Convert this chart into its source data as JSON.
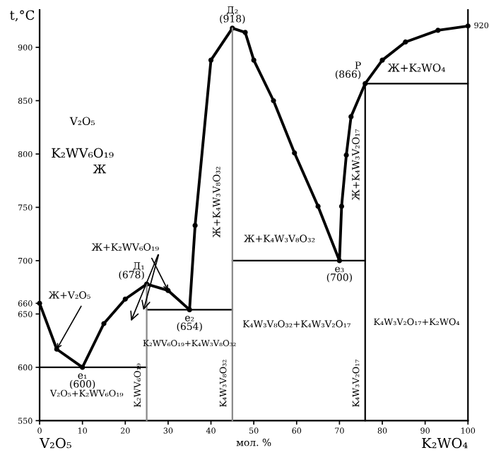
{
  "chart_data": {
    "type": "line",
    "xlabel": "мол. %",
    "ylabel": "t,°C",
    "xlim": [
      0,
      100
    ],
    "ylim": [
      550,
      935
    ],
    "xticks": [
      0,
      10,
      20,
      30,
      40,
      50,
      60,
      70,
      80,
      90,
      100
    ],
    "yticks": [
      550,
      600,
      650,
      660,
      700,
      750,
      800,
      850,
      900
    ],
    "grid": false,
    "marker": "circle",
    "line_style": "solid",
    "series": [
      {
        "color": "#000000",
        "x": [
          0,
          4,
          10,
          15,
          20,
          25,
          30,
          35,
          36.3,
          40,
          45,
          48,
          50,
          54.6,
          59.5,
          65,
          70,
          70.5,
          71.6,
          72.7,
          76,
          80,
          85.4,
          93,
          100
        ],
        "values": [
          660,
          617,
          600,
          641,
          664,
          678,
          672,
          654,
          733,
          888,
          918,
          914,
          888,
          850,
          801,
          751,
          700,
          751,
          799,
          835,
          866,
          888,
          905,
          916,
          920
        ]
      },
      {
        "color": "#000000",
        "marker": "none",
        "x": [
          0,
          25
        ],
        "values": [
          600,
          600
        ]
      },
      {
        "color": "#000000",
        "marker": "none",
        "x": [
          25,
          45
        ],
        "values": [
          654,
          654
        ]
      },
      {
        "color": "#000000",
        "marker": "none",
        "x": [
          45,
          76
        ],
        "values": [
          700,
          700
        ]
      },
      {
        "color": "#000000",
        "marker": "none",
        "x": [
          76,
          100
        ],
        "values": [
          866,
          866
        ]
      },
      {
        "color": "#888888",
        "marker": "none",
        "x": [
          25,
          25
        ],
        "values": [
          550,
          678
        ]
      },
      {
        "color": "#888888",
        "marker": "none",
        "x": [
          45,
          45
        ],
        "values": [
          550,
          918
        ]
      },
      {
        "color": "#000000",
        "marker": "none",
        "x": [
          76,
          76
        ],
        "values": [
          550,
          866
        ]
      }
    ],
    "annotations": [
      {
        "text": "Д₁\n(678)",
        "x": 25,
        "y": 678
      },
      {
        "text": "Д₂\n(918)",
        "x": 45,
        "y": 918
      },
      {
        "text": "e₁\n(600)",
        "x": 10,
        "y": 600
      },
      {
        "text": "e₂\n(654)",
        "x": 35,
        "y": 654
      },
      {
        "text": "e₃\n(700)",
        "x": 70,
        "y": 700
      },
      {
        "text": "P\n(866)",
        "x": 76,
        "y": 866
      },
      {
        "text": "920",
        "x": 100,
        "y": 920
      },
      {
        "text": "Ж+V₂O₅",
        "x": 4,
        "y": 617
      },
      {
        "text": "Ж+K₂WV₆O₁₉",
        "x": 30,
        "y": 672
      },
      "Ж+K₄W₃V₈O₃₂",
      "Ж+K₄W₃V₈O₃₂",
      "Ж+K₄W₃V₂O₁₇",
      "Ж+K₂WO₄",
      "V₂O₅+K₂WV₆O₁₉",
      "K₂WV₆O₁₉",
      "K₂WV₆O₁₉+K₄W₃V₈O₃₂",
      "K₄W₃V₈O₃₂",
      "K₄W₃V₈O₃₂+K₄W₃V₂O₁₇",
      "K₄W₃V₂O₁₇",
      "K₄W₃V₂O₁₇+K₂WO₄",
      "V₂O₅",
      "K₂WV₆O₁₉",
      "Ж",
      "V₂O₅",
      "K₂WO₄"
    ]
  }
}
